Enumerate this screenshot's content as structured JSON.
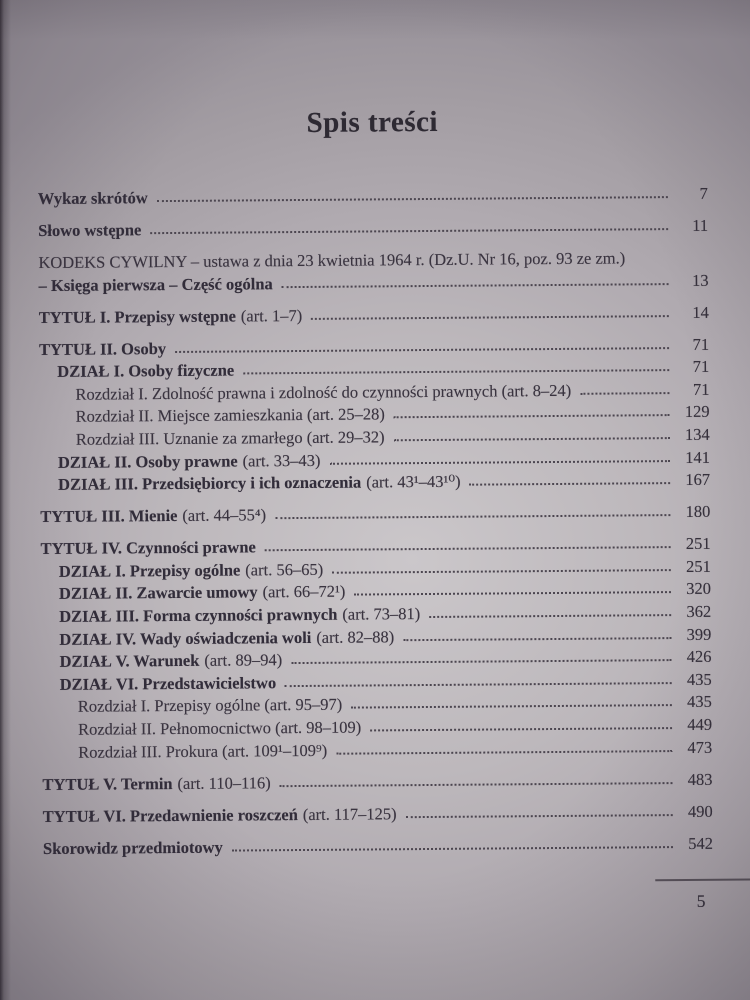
{
  "document": {
    "title": "Spis treści",
    "footer": {
      "page_number": "5"
    }
  },
  "toc": {
    "rows": [
      {
        "gap": false,
        "indent": 0,
        "bold": "Wykaz skrótów",
        "rest": "",
        "leader": true,
        "page": "7"
      },
      {
        "gap": true,
        "indent": 0,
        "bold": "Słowo wstępne",
        "rest": "",
        "leader": true,
        "page": "11"
      },
      {
        "gap": true,
        "indent": 0,
        "bold": "",
        "rest": "KODEKS CYWILNY – ustawa z dnia 23 kwietnia 1964 r. (Dz.U. Nr 16, poz. 93 ze zm.)",
        "leader": false,
        "page": ""
      },
      {
        "gap": false,
        "indent": 0,
        "bold": "– Księga pierwsza – Część ogólna",
        "rest": "",
        "leader": true,
        "page": "13"
      },
      {
        "gap": true,
        "indent": 0,
        "bold": "TYTUŁ I. Przepisy wstępne",
        "rest": "(art. 1–7)",
        "leader": true,
        "page": "14"
      },
      {
        "gap": true,
        "indent": 0,
        "bold": "TYTUŁ II. Osoby",
        "rest": "",
        "leader": true,
        "page": "71"
      },
      {
        "gap": false,
        "indent": 1,
        "bold": "DZIAŁ I. Osoby fizyczne",
        "rest": "",
        "leader": true,
        "page": "71"
      },
      {
        "gap": false,
        "indent": 2,
        "bold": "",
        "rest": "Rozdział I. Zdolność prawna i zdolność do czynności prawnych (art. 8–24)",
        "leader": true,
        "page": "71"
      },
      {
        "gap": false,
        "indent": 2,
        "bold": "",
        "rest": "Rozdział II. Miejsce zamieszkania (art. 25–28)",
        "leader": true,
        "page": "129"
      },
      {
        "gap": false,
        "indent": 2,
        "bold": "",
        "rest": "Rozdział III. Uznanie za zmarłego (art. 29–32)",
        "leader": true,
        "page": "134"
      },
      {
        "gap": false,
        "indent": 1,
        "bold": "DZIAŁ II. Osoby prawne",
        "rest": "(art. 33–43)",
        "leader": true,
        "page": "141"
      },
      {
        "gap": false,
        "indent": 1,
        "bold": "DZIAŁ III. Przedsiębiorcy i ich oznaczenia",
        "rest": "(art. 43¹–43¹⁰)",
        "leader": true,
        "page": "167"
      },
      {
        "gap": true,
        "indent": 0,
        "bold": "TYTUŁ III. Mienie",
        "rest": "(art. 44–55⁴)",
        "leader": true,
        "page": "180"
      },
      {
        "gap": true,
        "indent": 0,
        "bold": "TYTUŁ IV. Czynności prawne",
        "rest": "",
        "leader": true,
        "page": "251"
      },
      {
        "gap": false,
        "indent": 1,
        "bold": "DZIAŁ I. Przepisy ogólne",
        "rest": "(art. 56–65)",
        "leader": true,
        "page": "251"
      },
      {
        "gap": false,
        "indent": 1,
        "bold": "DZIAŁ II. Zawarcie umowy",
        "rest": "(art. 66–72¹)",
        "leader": true,
        "page": "320"
      },
      {
        "gap": false,
        "indent": 1,
        "bold": "DZIAŁ III. Forma czynności prawnych",
        "rest": "(art. 73–81)",
        "leader": true,
        "page": "362"
      },
      {
        "gap": false,
        "indent": 1,
        "bold": "DZIAŁ IV. Wady oświadczenia woli",
        "rest": "(art. 82–88)",
        "leader": true,
        "page": "399"
      },
      {
        "gap": false,
        "indent": 1,
        "bold": "DZIAŁ V. Warunek",
        "rest": "(art. 89–94)",
        "leader": true,
        "page": "426"
      },
      {
        "gap": false,
        "indent": 1,
        "bold": "DZIAŁ VI. Przedstawicielstwo",
        "rest": "",
        "leader": true,
        "page": "435"
      },
      {
        "gap": false,
        "indent": 2,
        "bold": "",
        "rest": "Rozdział I. Przepisy ogólne (art. 95–97)",
        "leader": true,
        "page": "435"
      },
      {
        "gap": false,
        "indent": 2,
        "bold": "",
        "rest": "Rozdział II. Pełnomocnictwo (art. 98–109)",
        "leader": true,
        "page": "449"
      },
      {
        "gap": false,
        "indent": 2,
        "bold": "",
        "rest": "Rozdział III. Prokura (art. 109¹–109⁹)",
        "leader": true,
        "page": "473"
      },
      {
        "gap": true,
        "indent": 0,
        "bold": "TYTUŁ V. Termin",
        "rest": "(art. 110–116)",
        "leader": true,
        "page": "483"
      },
      {
        "gap": true,
        "indent": 0,
        "bold": "TYTUŁ VI. Przedawnienie roszczeń",
        "rest": "(art. 117–125)",
        "leader": true,
        "page": "490"
      },
      {
        "gap": true,
        "indent": 0,
        "bold": "Skorowidz przedmiotowy",
        "rest": "",
        "leader": true,
        "page": "542"
      }
    ]
  }
}
